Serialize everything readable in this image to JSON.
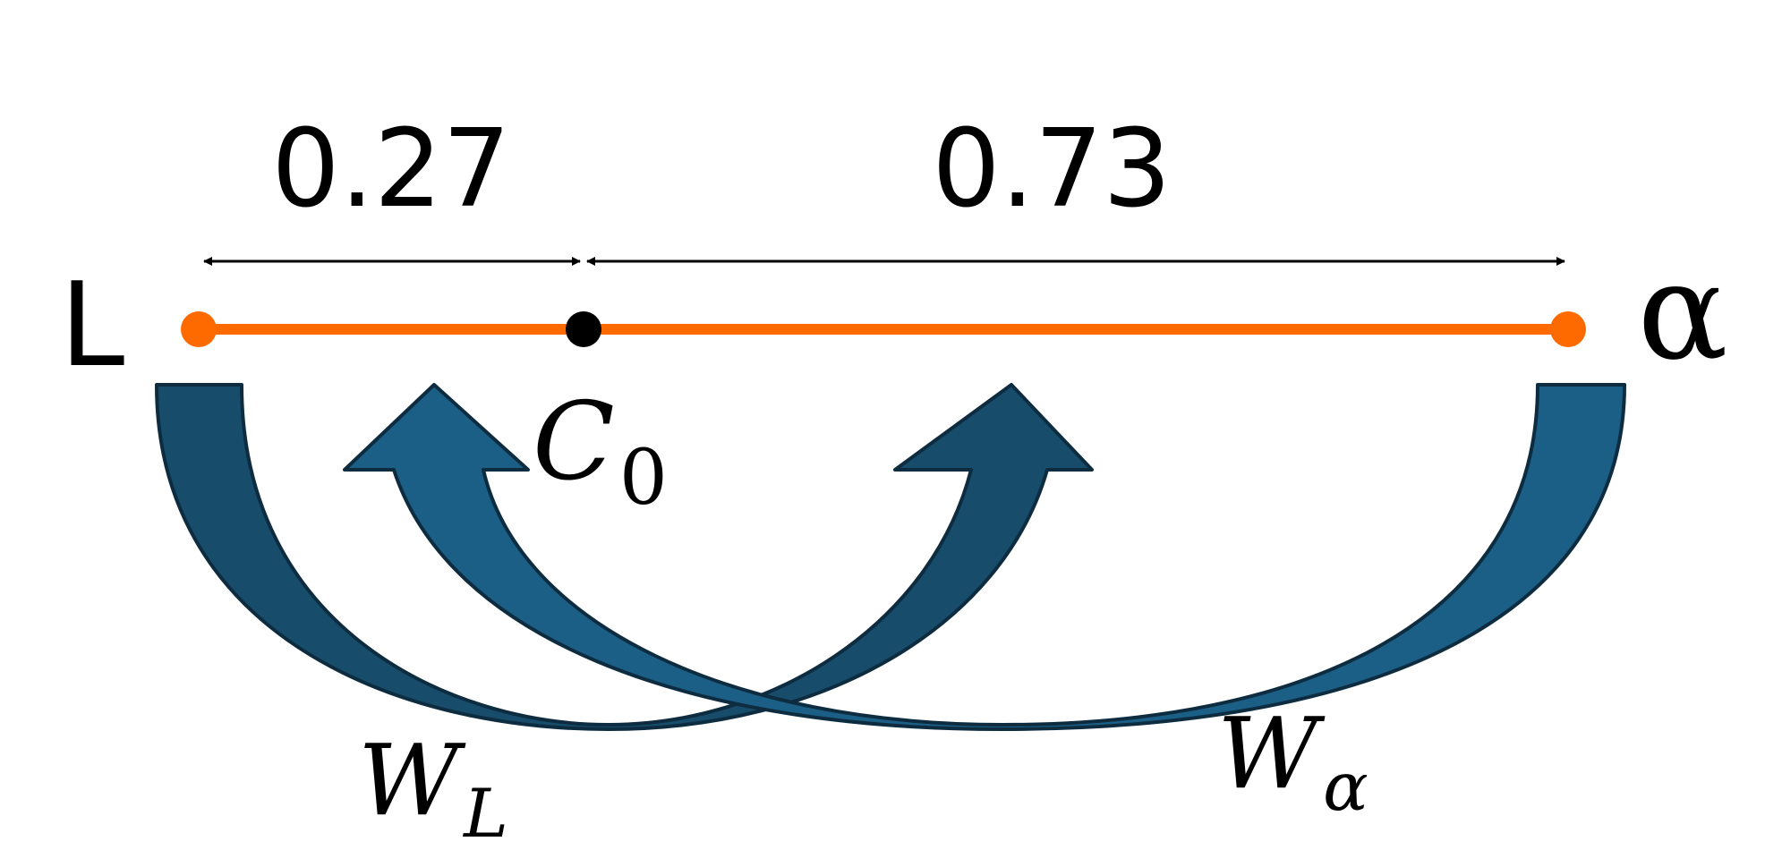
{
  "diagram": {
    "left_end_label": "L",
    "right_end_label": "α",
    "composition_label": "C",
    "composition_subscript": "0",
    "left_fraction": 0.27,
    "right_fraction": 0.73,
    "left_fraction_label": "0.27",
    "right_fraction_label": "0.73",
    "weight_left_label": "W",
    "weight_left_subscript": "L",
    "weight_right_label": "W",
    "weight_right_subscript": "α",
    "colors": {
      "tie_line": "#ff6a00",
      "composition_point": "#000000",
      "arrow_fill": "#1b5f86",
      "arrow_fill_dark": "#174c6b",
      "arrow_stroke": "#0e2c40",
      "text": "#000000"
    }
  }
}
